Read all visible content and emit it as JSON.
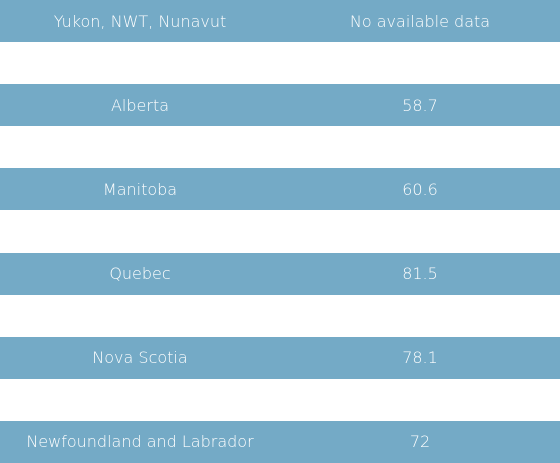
{
  "table": {
    "rows": [
      [
        "Yukon, NWT, Nunavut",
        "No available data"
      ],
      [
        "Alberta",
        "58.7"
      ],
      [
        "Manitoba",
        "60.6"
      ],
      [
        "Quebec",
        "81.5"
      ],
      [
        "Nova Scotia",
        "78.1"
      ],
      [
        "Newfoundland and Labrador",
        "72"
      ]
    ]
  }
}
